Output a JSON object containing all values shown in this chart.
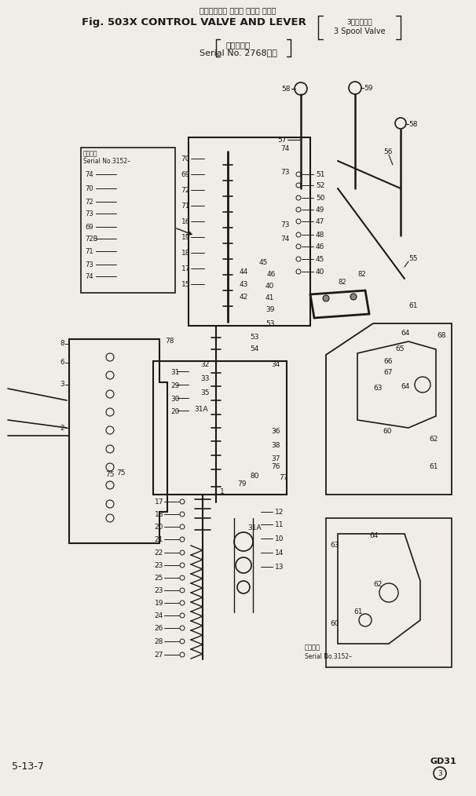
{
  "bg_color": "#e8e8e0",
  "line_color": "#1a1a1a",
  "text_color": "#1a1a1a",
  "title_line1": "コントロール バルブ および レバー",
  "title_line2": "Fig. 503X CONTROL VALVE AND LEVER",
  "title_bracket_jp": "3本弁バルブ",
  "title_bracket_en": "3 Spool Valve",
  "title_sub1": "（適用号機",
  "title_sub2": "Serial No. 2768～）",
  "footer_left": "5-13-7",
  "footer_model": "GD31",
  "inset_label": "適用号機",
  "inset_serial": "Serial No.3152–",
  "lower_inset_label": "適用号機",
  "lower_inset_serial": "Serial No.3152–"
}
